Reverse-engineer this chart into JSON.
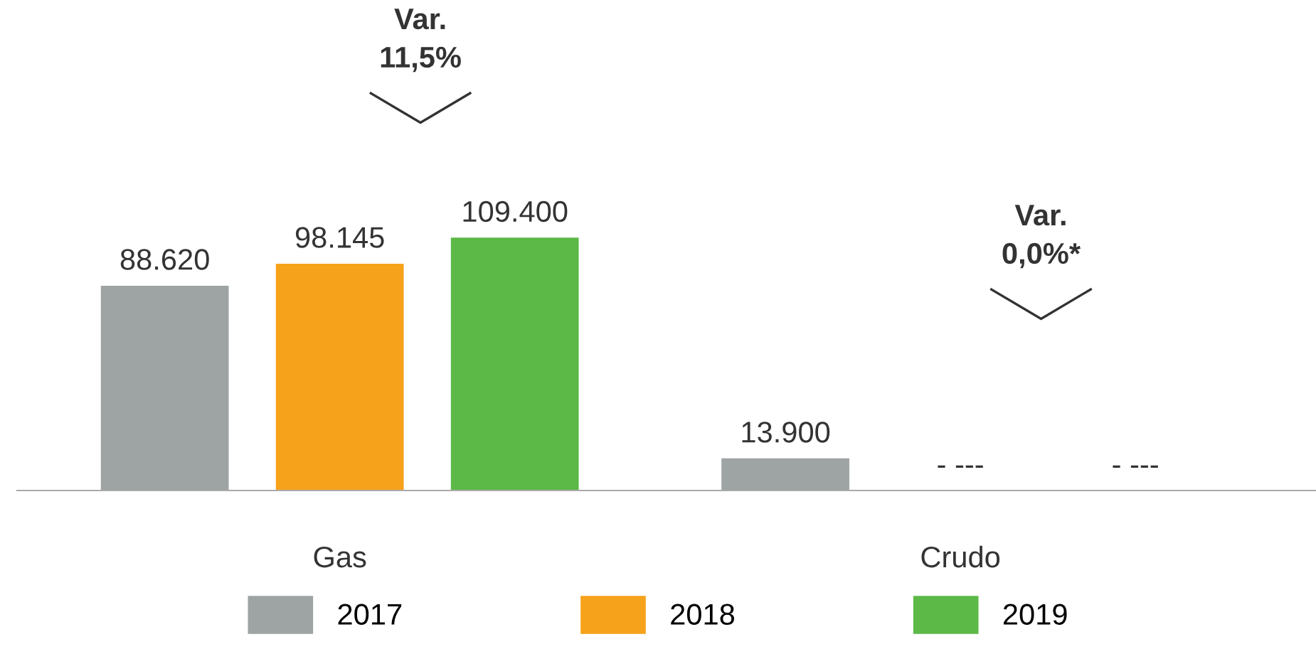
{
  "chart_data": {
    "type": "bar",
    "categories": [
      "Gas",
      "Crudo"
    ],
    "series": [
      {
        "name": "2017",
        "color": "#9ea3a3",
        "values": [
          88620,
          13900
        ],
        "value_labels": [
          "88.620",
          "13.900"
        ]
      },
      {
        "name": "2018",
        "color": "#f7a21b",
        "values": [
          98145,
          null
        ],
        "value_labels": [
          "98.145",
          "- ---"
        ]
      },
      {
        "name": "2019",
        "color": "#5cb947",
        "values": [
          109400,
          null
        ],
        "value_labels": [
          "109.400",
          "- ---"
        ]
      }
    ],
    "annotations": [
      "Var.\n11,5%",
      "Var.\n0,0%*"
    ],
    "legend": "bottom",
    "grid": false
  }
}
